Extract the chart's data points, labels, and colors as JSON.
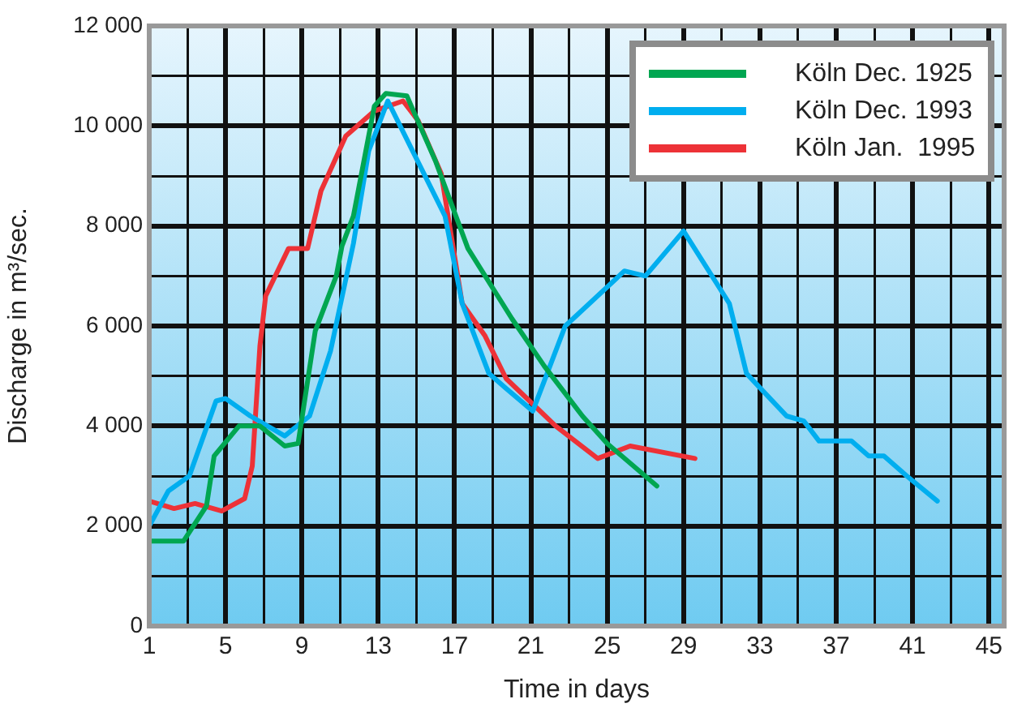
{
  "chart_data": {
    "type": "line",
    "xlabel": "Time in days",
    "ylabel": "Discharge in m³/sec.",
    "xlim": [
      1,
      45.8
    ],
    "xticks": [
      1,
      {
        "value": 3,
        "label": null
      },
      5,
      {
        "value": 7,
        "label": null
      },
      9,
      {
        "value": 11,
        "label": null
      },
      13,
      {
        "value": 15,
        "label": null
      },
      17,
      {
        "value": 19,
        "label": null
      },
      21,
      {
        "value": 23,
        "label": null
      },
      25,
      {
        "value": 27,
        "label": null
      },
      29,
      {
        "value": 31,
        "label": null
      },
      33,
      {
        "value": 35,
        "label": null
      },
      37,
      {
        "value": 39,
        "label": null
      },
      41,
      {
        "value": 43,
        "label": null
      },
      45
    ],
    "ylim": [
      0,
      12000
    ],
    "yticks": [
      0,
      {
        "value": 1000,
        "label": null
      },
      {
        "value": 2000,
        "label": "2 000"
      },
      {
        "value": 3000,
        "label": null
      },
      {
        "value": 4000,
        "label": "4 000"
      },
      {
        "value": 5000,
        "label": null
      },
      {
        "value": 6000,
        "label": "6 000"
      },
      {
        "value": 7000,
        "label": null
      },
      {
        "value": 8000,
        "label": "8 000"
      },
      {
        "value": 9000,
        "label": null
      },
      {
        "value": 10000,
        "label": "10 000"
      },
      {
        "value": 11000,
        "label": null
      },
      {
        "value": 12000,
        "label": "12 000"
      }
    ],
    "grid": true,
    "legend": "top right",
    "marker": "none",
    "line_style": "solid",
    "series": [
      {
        "name": "Köln Dec. 1925",
        "color": "#00a651",
        "x": [
          1,
          2.8,
          4,
          4.4,
          5.7,
          6.8,
          8.1,
          8.8,
          9.7,
          10.8,
          11.1,
          11.7,
          12.8,
          13.4,
          14.5,
          16,
          17.7,
          20,
          21.7,
          23.7,
          25,
          27.6
        ],
        "values": [
          1700,
          1700,
          2400,
          3400,
          4000,
          4000,
          3600,
          3650,
          5900,
          7000,
          7600,
          8200,
          10400,
          10650,
          10600,
          9300,
          7550,
          6150,
          5200,
          4200,
          3650,
          2800
        ]
      },
      {
        "name": "Köln Dec. 1993",
        "color": "#00aeef",
        "x": [
          1,
          2,
          3.1,
          4.5,
          5,
          6.3,
          8.1,
          9.4,
          10.5,
          11.7,
          12.5,
          13.5,
          14.8,
          16.5,
          17.4,
          18.8,
          19.7,
          21.1,
          22.8,
          25.9,
          27,
          29,
          31.4,
          32.3,
          34.4,
          35.3,
          36.1,
          37.8,
          38.7,
          39.5,
          40.7,
          42.3
        ],
        "values": [
          2000,
          2700,
          3000,
          4500,
          4550,
          4200,
          3800,
          4200,
          5500,
          7650,
          9500,
          10500,
          9500,
          8200,
          6450,
          5050,
          4750,
          4300,
          6000,
          7100,
          7000,
          7900,
          6450,
          5050,
          4200,
          4100,
          3700,
          3700,
          3400,
          3400,
          3000,
          2500
        ]
      },
      {
        "name": "Köln Jan.  1995",
        "color": "#ed3237",
        "x": [
          1,
          2.3,
          3.4,
          4.8,
          6,
          6.4,
          6.8,
          7.1,
          8.3,
          9.3,
          10,
          11.3,
          12.8,
          14.3,
          15.1,
          16.3,
          17.4,
          18.6,
          19.7,
          22.3,
          24.5,
          26.2,
          29.6
        ],
        "values": [
          2500,
          2350,
          2450,
          2300,
          2550,
          3200,
          5600,
          6600,
          7550,
          7550,
          8700,
          9800,
          10300,
          10500,
          10100,
          9050,
          6450,
          5800,
          4950,
          4000,
          3350,
          3600,
          3350
        ]
      }
    ]
  }
}
